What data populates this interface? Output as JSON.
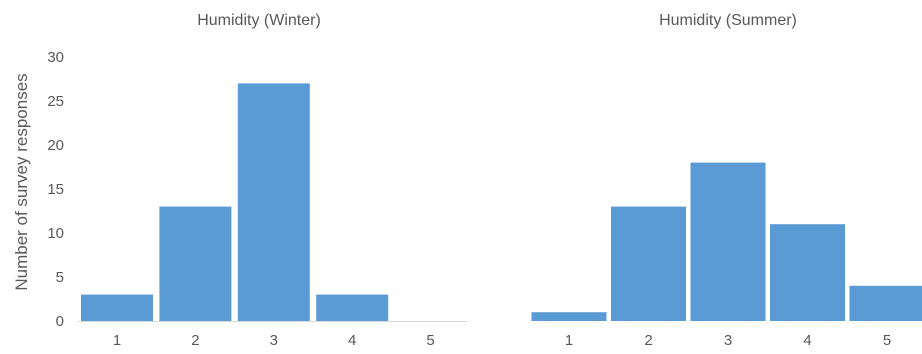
{
  "chart_data": [
    {
      "type": "bar",
      "title": "Humidity (Winter)",
      "ylabel": "Number of survey responses",
      "xlabel": "",
      "categories": [
        "1",
        "2",
        "3",
        "4",
        "5"
      ],
      "values": [
        3,
        13,
        27,
        3,
        0
      ],
      "ylim": [
        0,
        30
      ],
      "yticks": [
        0,
        5,
        10,
        15,
        20,
        25,
        30
      ],
      "grid": false,
      "bar_color": "#5b9bd5"
    },
    {
      "type": "bar",
      "title": "Humidity (Summer)",
      "ylabel": "",
      "xlabel": "",
      "categories": [
        "1",
        "2",
        "3",
        "4",
        "5"
      ],
      "values": [
        1,
        13,
        18,
        11,
        4
      ],
      "ylim": [
        0,
        30
      ],
      "grid": false,
      "bar_color": "#5b9bd5"
    }
  ]
}
